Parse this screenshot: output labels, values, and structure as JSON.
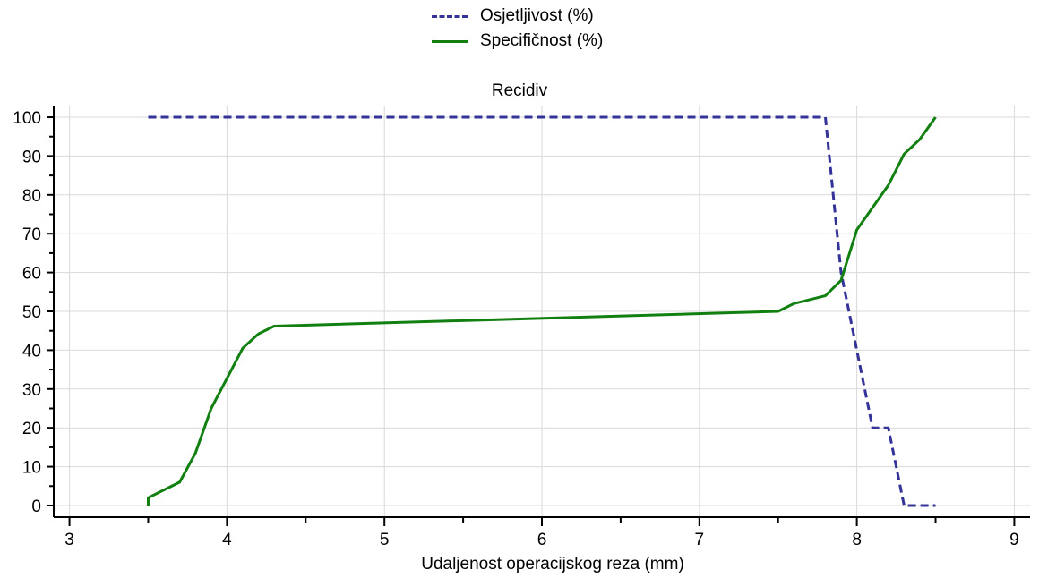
{
  "chart_data": {
    "type": "line",
    "title": "Recidiv",
    "xlabel": "Udaljenost operacijskog reza (mm)",
    "ylabel": "",
    "xlim": [
      2.9,
      9.1
    ],
    "ylim": [
      -3,
      103
    ],
    "xticks": [
      3,
      4,
      5,
      6,
      7,
      8,
      9
    ],
    "yticks": [
      0,
      10,
      20,
      30,
      40,
      50,
      60,
      70,
      80,
      90,
      100
    ],
    "grid": true,
    "legend_position": "top-center",
    "series": [
      {
        "name": "Osjetljivost (%)",
        "style": "dashed",
        "color": "#33339a",
        "points": [
          [
            3.5,
            100
          ],
          [
            7.8,
            100
          ],
          [
            7.9,
            60
          ],
          [
            8.0,
            40
          ],
          [
            8.1,
            20
          ],
          [
            8.2,
            20
          ],
          [
            8.3,
            0
          ],
          [
            8.5,
            0
          ]
        ]
      },
      {
        "name": "Specifičnost (%)",
        "style": "solid",
        "color": "#118011",
        "points": [
          [
            3.5,
            0
          ],
          [
            3.5,
            2
          ],
          [
            3.7,
            6
          ],
          [
            3.8,
            13.5
          ],
          [
            3.9,
            25
          ],
          [
            4.1,
            40.5
          ],
          [
            4.2,
            44.2
          ],
          [
            4.3,
            46.2
          ],
          [
            7.5,
            50
          ],
          [
            7.6,
            52
          ],
          [
            7.8,
            54
          ],
          [
            7.9,
            58
          ],
          [
            8.0,
            71
          ],
          [
            8.2,
            82.5
          ],
          [
            8.3,
            90.5
          ],
          [
            8.4,
            94.3
          ],
          [
            8.5,
            100
          ]
        ]
      }
    ]
  }
}
